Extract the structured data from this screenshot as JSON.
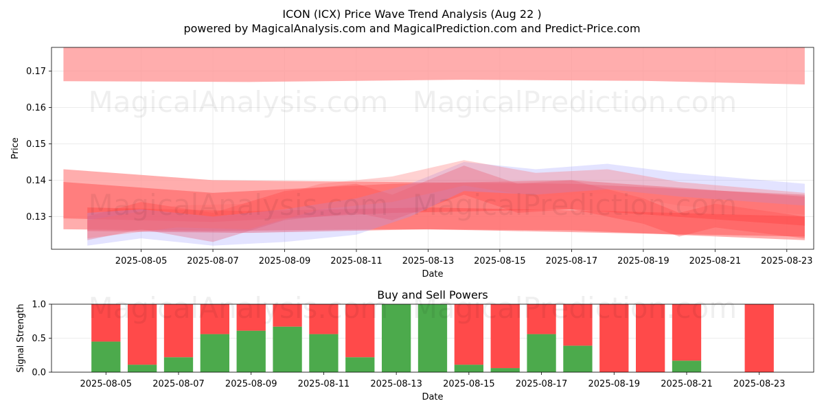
{
  "header": {
    "title": "ICON (ICX) Price Wave Trend Analysis (Aug 22 )",
    "subtitle": "powered by MagicalAnalysis.com and MagicalPrediction.com and Predict-Price.com"
  },
  "watermarks": {
    "left": "MagicalAnalysis.com",
    "right": "MagicalPrediction.com"
  },
  "chart_data": [
    {
      "type": "area",
      "title": "",
      "xlabel": "Date",
      "ylabel": "Price",
      "xlim": [
        "2025-08-02T12:00",
        "2025-08-23T18:00"
      ],
      "ylim": [
        0.121,
        0.1765
      ],
      "grid": true,
      "x_ticks": [
        "2025-08-05",
        "2025-08-07",
        "2025-08-09",
        "2025-08-11",
        "2025-08-13",
        "2025-08-15",
        "2025-08-17",
        "2025-08-19",
        "2025-08-21",
        "2025-08-23"
      ],
      "y_ticks": [
        0.13,
        0.14,
        0.15,
        0.16,
        0.17
      ],
      "bands": [
        {
          "color": "#ff9999",
          "opacity": 0.8,
          "points": [
            {
              "x": "2025-08-02T20:00",
              "lo": 0.1672,
              "hi": 0.1767
            },
            {
              "x": "2025-08-08T00:00",
              "lo": 0.167,
              "hi": 0.1767
            },
            {
              "x": "2025-08-14T00:00",
              "lo": 0.1676,
              "hi": 0.1767
            },
            {
              "x": "2025-08-19T00:00",
              "lo": 0.1673,
              "hi": 0.1767
            },
            {
              "x": "2025-08-23T12:00",
              "lo": 0.1663,
              "hi": 0.1767
            }
          ]
        },
        {
          "color": "#ff9999",
          "opacity": 0.8,
          "points": [
            {
              "x": "2025-08-02T20:00",
              "lo": 0.1265,
              "hi": 0.143
            },
            {
              "x": "2025-08-07T00:00",
              "lo": 0.126,
              "hi": 0.14
            },
            {
              "x": "2025-08-12T00:00",
              "lo": 0.1265,
              "hi": 0.1395
            },
            {
              "x": "2025-08-17T00:00",
              "lo": 0.1262,
              "hi": 0.139
            },
            {
              "x": "2025-08-23T12:00",
              "lo": 0.1235,
              "hi": 0.136
            }
          ]
        },
        {
          "color": "#ff4444",
          "opacity": 0.45,
          "points": [
            {
              "x": "2025-08-02T20:00",
              "lo": 0.1295,
              "hi": 0.1395
            },
            {
              "x": "2025-08-07T00:00",
              "lo": 0.1285,
              "hi": 0.1365
            },
            {
              "x": "2025-08-12T00:00",
              "lo": 0.131,
              "hi": 0.139
            },
            {
              "x": "2025-08-17T00:00",
              "lo": 0.132,
              "hi": 0.14
            },
            {
              "x": "2025-08-23T12:00",
              "lo": 0.1275,
              "hi": 0.1355
            }
          ]
        },
        {
          "color": "#ff4444",
          "opacity": 0.45,
          "points": [
            {
              "x": "2025-08-03T12:00",
              "lo": 0.126,
              "hi": 0.1325
            },
            {
              "x": "2025-08-08T00:00",
              "lo": 0.1255,
              "hi": 0.1315
            },
            {
              "x": "2025-08-13T00:00",
              "lo": 0.1265,
              "hi": 0.1325
            },
            {
              "x": "2025-08-18T00:00",
              "lo": 0.1255,
              "hi": 0.1315
            },
            {
              "x": "2025-08-23T12:00",
              "lo": 0.1245,
              "hi": 0.13
            }
          ]
        },
        {
          "color": "#ff4444",
          "opacity": 0.35,
          "points": [
            {
              "x": "2025-08-03T12:00",
              "lo": 0.1235,
              "hi": 0.13
            },
            {
              "x": "2025-08-05T00:00",
              "lo": 0.1265,
              "hi": 0.134
            },
            {
              "x": "2025-08-07T00:00",
              "lo": 0.123,
              "hi": 0.131
            },
            {
              "x": "2025-08-09T00:00",
              "lo": 0.129,
              "hi": 0.137
            },
            {
              "x": "2025-08-11T00:00",
              "lo": 0.131,
              "hi": 0.139
            },
            {
              "x": "2025-08-12T00:00",
              "lo": 0.129,
              "hi": 0.136
            },
            {
              "x": "2025-08-14T00:00",
              "lo": 0.136,
              "hi": 0.144
            },
            {
              "x": "2025-08-15T12:00",
              "lo": 0.131,
              "hi": 0.139
            },
            {
              "x": "2025-08-17T00:00",
              "lo": 0.132,
              "hi": 0.14
            },
            {
              "x": "2025-08-19T00:00",
              "lo": 0.128,
              "hi": 0.135
            },
            {
              "x": "2025-08-20T00:00",
              "lo": 0.1245,
              "hi": 0.131
            },
            {
              "x": "2025-08-21T00:00",
              "lo": 0.127,
              "hi": 0.1335
            },
            {
              "x": "2025-08-23T12:00",
              "lo": 0.124,
              "hi": 0.13
            }
          ]
        },
        {
          "color": "#9999ff",
          "opacity": 0.28,
          "points": [
            {
              "x": "2025-08-03T12:00",
              "lo": 0.122,
              "hi": 0.131
            },
            {
              "x": "2025-08-05T00:00",
              "lo": 0.124,
              "hi": 0.132
            },
            {
              "x": "2025-08-07T00:00",
              "lo": 0.122,
              "hi": 0.13
            },
            {
              "x": "2025-08-09T00:00",
              "lo": 0.123,
              "hi": 0.132
            },
            {
              "x": "2025-08-11T00:00",
              "lo": 0.125,
              "hi": 0.135
            },
            {
              "x": "2025-08-12T12:00",
              "lo": 0.13,
              "hi": 0.139
            },
            {
              "x": "2025-08-14T00:00",
              "lo": 0.137,
              "hi": 0.145
            },
            {
              "x": "2025-08-16T00:00",
              "lo": 0.136,
              "hi": 0.143
            },
            {
              "x": "2025-08-18T00:00",
              "lo": 0.1375,
              "hi": 0.1445
            },
            {
              "x": "2025-08-20T00:00",
              "lo": 0.1355,
              "hi": 0.142
            },
            {
              "x": "2025-08-23T12:00",
              "lo": 0.133,
              "hi": 0.139
            }
          ]
        },
        {
          "color": "#ff6666",
          "opacity": 0.3,
          "points": [
            {
              "x": "2025-08-03T12:00",
              "lo": 0.124,
              "hi": 0.129
            },
            {
              "x": "2025-08-06T00:00",
              "lo": 0.127,
              "hi": 0.133
            },
            {
              "x": "2025-08-08T00:00",
              "lo": 0.1265,
              "hi": 0.1335
            },
            {
              "x": "2025-08-10T00:00",
              "lo": 0.132,
              "hi": 0.139
            },
            {
              "x": "2025-08-12T00:00",
              "lo": 0.134,
              "hi": 0.141
            },
            {
              "x": "2025-08-14T00:00",
              "lo": 0.1385,
              "hi": 0.1455
            },
            {
              "x": "2025-08-16T00:00",
              "lo": 0.1355,
              "hi": 0.142
            },
            {
              "x": "2025-08-18T00:00",
              "lo": 0.1365,
              "hi": 0.143
            },
            {
              "x": "2025-08-20T00:00",
              "lo": 0.133,
              "hi": 0.1395
            },
            {
              "x": "2025-08-23T12:00",
              "lo": 0.1305,
              "hi": 0.1365
            }
          ]
        }
      ]
    },
    {
      "type": "bar",
      "title": "Buy and Sell Powers",
      "xlabel": "Date",
      "ylabel": "Signal Strength",
      "xlim": [
        "2025-08-03T12:00",
        "2025-08-24T12:00"
      ],
      "ylim": [
        0,
        1.0
      ],
      "grid": true,
      "x_ticks": [
        "2025-08-05",
        "2025-08-07",
        "2025-08-09",
        "2025-08-11",
        "2025-08-13",
        "2025-08-15",
        "2025-08-17",
        "2025-08-19",
        "2025-08-21",
        "2025-08-23"
      ],
      "y_ticks": [
        0.0,
        0.5,
        1.0
      ],
      "y_tick_labels": [
        "0.0",
        "0.5",
        "1.0"
      ],
      "categories": [
        "2025-08-05",
        "2025-08-06",
        "2025-08-07",
        "2025-08-08",
        "2025-08-09",
        "2025-08-10",
        "2025-08-11",
        "2025-08-12",
        "2025-08-13",
        "2025-08-14",
        "2025-08-15",
        "2025-08-16",
        "2025-08-17",
        "2025-08-18",
        "2025-08-19",
        "2025-08-20",
        "2025-08-21",
        "2025-08-23"
      ],
      "series": [
        {
          "color": "#4caa4c",
          "values": [
            0.45,
            0.11,
            0.22,
            0.56,
            0.61,
            0.67,
            0.56,
            0.22,
            1.0,
            1.0,
            0.11,
            0.06,
            0.56,
            0.39,
            0.0,
            0.0,
            0.17,
            0.0
          ]
        },
        {
          "color": "#ff4a4a",
          "values": [
            0.55,
            0.89,
            0.78,
            0.44,
            0.39,
            0.33,
            0.44,
            0.78,
            0.0,
            0.0,
            0.89,
            0.94,
            0.44,
            0.61,
            1.0,
            1.0,
            0.83,
            1.0
          ]
        }
      ]
    }
  ]
}
